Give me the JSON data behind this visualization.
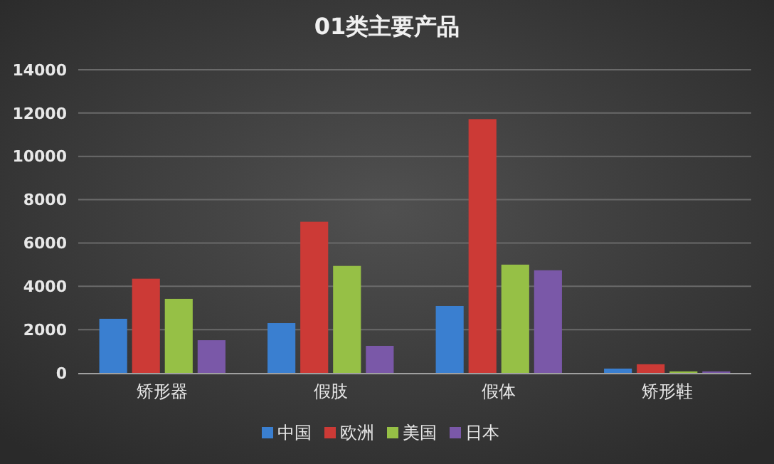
{
  "chart_data": {
    "type": "bar",
    "title": "01类主要产品",
    "categories": [
      "矫形器",
      "假肢",
      "假体",
      "矫形鞋"
    ],
    "series": [
      {
        "name": "中国",
        "color": "#3a7fd0",
        "values": [
          2500,
          2300,
          3090,
          200
        ]
      },
      {
        "name": "欧洲",
        "color": "#cc3a36",
        "values": [
          4350,
          6980,
          11720,
          400
        ]
      },
      {
        "name": "美国",
        "color": "#96c046",
        "values": [
          3420,
          4940,
          5000,
          70
        ]
      },
      {
        "name": "日本",
        "color": "#7a58a8",
        "values": [
          1510,
          1250,
          4740,
          70
        ]
      }
    ],
    "ylim": [
      0,
      14000
    ],
    "yticks": [
      0,
      2000,
      4000,
      6000,
      8000,
      10000,
      12000,
      14000
    ],
    "grid": "y",
    "legend": "bottom"
  }
}
